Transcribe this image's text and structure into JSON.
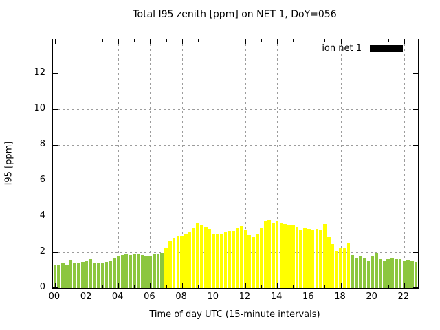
{
  "title": "Total I95 zenith [ppm] on NET 1, DoY=056",
  "legend": {
    "label": "ion net 1",
    "swatch_color": "#000000"
  },
  "chart_data": {
    "type": "bar",
    "title": "Total I95 zenith [ppm] on NET 1, DoY=056",
    "xlabel": "Time of day UTC (15-minute intervals)",
    "ylabel": "I95 [ppm]",
    "ylim": [
      0,
      13.9
    ],
    "xlim_hours": [
      -0.125,
      22.875
    ],
    "interval_minutes": 15,
    "grid": true,
    "legend_position": "top-right",
    "yticks": [
      0,
      2,
      4,
      6,
      8,
      10,
      12
    ],
    "xtick_labeled_hours": [
      0,
      2,
      4,
      6,
      8,
      10,
      12,
      14,
      16,
      18,
      20,
      22
    ],
    "xtick_labels": [
      "00",
      "02",
      "04",
      "06",
      "08",
      "10",
      "12",
      "14",
      "16",
      "18",
      "20",
      "22"
    ],
    "xtick_minor_hours": [
      1,
      3,
      5,
      7,
      9,
      11,
      13,
      15,
      17,
      19,
      21
    ],
    "palette": {
      "g": "#8CC63F",
      "y": "#FFFF00"
    },
    "series_name": "ion net 1",
    "times": [
      "00:00",
      "00:15",
      "00:30",
      "00:45",
      "01:00",
      "01:15",
      "01:30",
      "01:45",
      "02:00",
      "02:15",
      "02:30",
      "02:45",
      "03:00",
      "03:15",
      "03:30",
      "03:45",
      "04:00",
      "04:15",
      "04:30",
      "04:45",
      "05:00",
      "05:15",
      "05:30",
      "05:45",
      "06:00",
      "06:15",
      "06:30",
      "06:45",
      "07:00",
      "07:15",
      "07:30",
      "07:45",
      "08:00",
      "08:15",
      "08:30",
      "08:45",
      "09:00",
      "09:15",
      "09:30",
      "09:45",
      "10:00",
      "10:15",
      "10:30",
      "10:45",
      "11:00",
      "11:15",
      "11:30",
      "11:45",
      "12:00",
      "12:15",
      "12:30",
      "12:45",
      "13:00",
      "13:15",
      "13:30",
      "13:45",
      "14:00",
      "14:15",
      "14:30",
      "14:45",
      "15:00",
      "15:15",
      "15:30",
      "15:45",
      "16:00",
      "16:15",
      "16:30",
      "16:45",
      "17:00",
      "17:15",
      "17:30",
      "17:45",
      "18:00",
      "18:15",
      "18:30",
      "18:45",
      "19:00",
      "19:15",
      "19:30",
      "19:45",
      "20:00",
      "20:15",
      "20:30",
      "20:45",
      "21:00",
      "21:15",
      "21:30",
      "21:45",
      "22:00",
      "22:15",
      "22:30",
      "22:45"
    ],
    "values": [
      1.3,
      1.32,
      1.4,
      1.32,
      1.56,
      1.4,
      1.42,
      1.48,
      1.5,
      1.65,
      1.42,
      1.44,
      1.44,
      1.47,
      1.55,
      1.68,
      1.76,
      1.86,
      1.88,
      1.85,
      1.9,
      1.87,
      1.83,
      1.79,
      1.81,
      1.9,
      1.88,
      1.95,
      2.28,
      2.62,
      2.8,
      2.88,
      2.92,
      3.05,
      3.12,
      3.4,
      3.6,
      3.5,
      3.42,
      3.3,
      3.02,
      2.98,
      3.0,
      3.15,
      3.19,
      3.19,
      3.35,
      3.44,
      3.22,
      2.96,
      2.83,
      3.05,
      3.35,
      3.73,
      3.8,
      3.64,
      3.73,
      3.64,
      3.58,
      3.54,
      3.5,
      3.41,
      3.24,
      3.35,
      3.32,
      3.22,
      3.31,
      3.28,
      3.57,
      2.83,
      2.47,
      2.06,
      2.22,
      2.28,
      2.55,
      1.83,
      1.68,
      1.78,
      1.7,
      1.55,
      1.78,
      1.95,
      1.65,
      1.55,
      1.62,
      1.68,
      1.64,
      1.62,
      1.55,
      1.58,
      1.55,
      1.45
    ],
    "colors": [
      "g",
      "g",
      "g",
      "g",
      "g",
      "g",
      "g",
      "g",
      "g",
      "g",
      "g",
      "g",
      "g",
      "g",
      "g",
      "g",
      "g",
      "g",
      "g",
      "g",
      "g",
      "g",
      "g",
      "g",
      "g",
      "g",
      "g",
      "g",
      "y",
      "y",
      "y",
      "y",
      "y",
      "y",
      "y",
      "y",
      "y",
      "y",
      "y",
      "y",
      "y",
      "y",
      "y",
      "y",
      "y",
      "y",
      "y",
      "y",
      "y",
      "y",
      "y",
      "y",
      "y",
      "y",
      "y",
      "y",
      "y",
      "y",
      "y",
      "y",
      "y",
      "y",
      "y",
      "y",
      "y",
      "y",
      "y",
      "y",
      "y",
      "y",
      "y",
      "y",
      "y",
      "y",
      "y",
      "g",
      "g",
      "g",
      "g",
      "g",
      "g",
      "g",
      "g",
      "g",
      "g",
      "g",
      "g",
      "g",
      "g",
      "g",
      "g",
      "g"
    ]
  }
}
